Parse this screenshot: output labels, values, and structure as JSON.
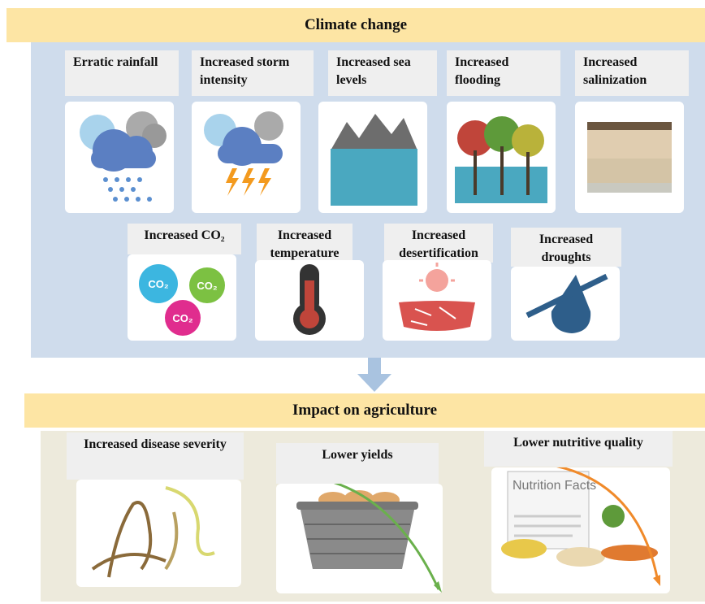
{
  "header": {
    "title": "Climate change"
  },
  "climate_effects": [
    {
      "label": "Erratic rainfall"
    },
    {
      "label": "Increased storm intensity"
    },
    {
      "label": "Increased sea levels"
    },
    {
      "label": "Increased flooding"
    },
    {
      "label": "Increased salinization"
    },
    {
      "label": "Increased CO₂",
      "icon_texts": [
        "CO₂",
        "CO₂",
        "CO₂"
      ]
    },
    {
      "label": "Increased temperature"
    },
    {
      "label": "Increased desertification"
    },
    {
      "label": "Increased droughts"
    }
  ],
  "impact": {
    "title": "Impact on agriculture",
    "effects": [
      {
        "label": "Increased disease severity"
      },
      {
        "label": "Lower yields"
      },
      {
        "label": "Lower nutritive quality",
        "icon_text": "Nutrition Facts"
      }
    ]
  }
}
